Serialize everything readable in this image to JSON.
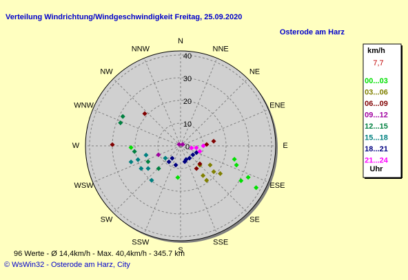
{
  "chart_data": {
    "type": "scatter",
    "polar": true,
    "title": "Verteilung Windrichtung/Windgeschwindigkeit  Freitag, 25.09.2020",
    "subtitle": "Osterode am Harz",
    "directions": [
      "N",
      "NNE",
      "NE",
      "ENE",
      "E",
      "ESE",
      "SE",
      "SSE",
      "S",
      "SSW",
      "SW",
      "WSW",
      "W",
      "WNW",
      "NW",
      "NNW"
    ],
    "rlim": [
      0,
      40
    ],
    "rticks": [
      0,
      10,
      20,
      30,
      40
    ],
    "xlim": [
      0,
      360
    ],
    "grid": true,
    "legend_unit": "km/h",
    "legend_current": "7,7",
    "legend_footer": "Uhr",
    "series": [
      {
        "name": "00...03",
        "color": "#00e000",
        "x": [
          104,
          109,
          120,
          115,
          119,
          268,
          185
        ],
        "values": [
          24.4,
          26,
          30.7,
          32.8,
          38,
          21.8,
          14
        ]
      },
      {
        "name": "03...06",
        "color": "#808000",
        "x": [
          143,
          143,
          128,
          125,
          123,
          135
        ],
        "values": [
          16.4,
          19,
          18.5,
          21.3,
          15.5,
          12
        ]
      },
      {
        "name": "06...09",
        "color": "#800000",
        "x": [
          271,
          312,
          82,
          87,
          133,
          145
        ],
        "values": [
          30,
          21.2,
          14.7,
          11.5,
          11.6,
          12.2
        ]
      },
      {
        "name": "09...12",
        "color": "#a000a0",
        "x": [
          315,
          56,
          248
        ],
        "values": [
          0.9,
          1.1,
          10.5
        ]
      },
      {
        "name": "12...15",
        "color": "#008040",
        "x": [
          297,
          291,
          263,
          244,
          224
        ],
        "values": [
          28.5,
          28.3,
          20.4,
          15.9,
          13.9
        ]
      },
      {
        "name": "15...18",
        "color": "#008080",
        "x": [
          252,
          252,
          240,
          235,
          220,
          255,
          231
        ],
        "values": [
          22.9,
          19.7,
          20,
          17.4,
          19.8,
          15.7,
          8.6
        ]
      },
      {
        "name": "18...21",
        "color": "#000080",
        "x": [
          216,
          214,
          194,
          158,
          144,
          126,
          165,
          113
        ],
        "values": [
          8.7,
          6.6,
          8.7,
          6.5,
          6.7,
          6.7,
          7.2,
          7.6
        ]
      },
      {
        "name": "21...24",
        "color": "#ff00ff",
        "x": [
          97,
          106,
          101,
          90
        ],
        "values": [
          7,
          8.8,
          4.9,
          10
        ]
      }
    ],
    "footer": "96 Werte   -   Ø 14,4km/h   -   Max. 40,4km/h   -   345.7 km",
    "credit": "© WsWin32  -  Osterode am Harz, City"
  }
}
